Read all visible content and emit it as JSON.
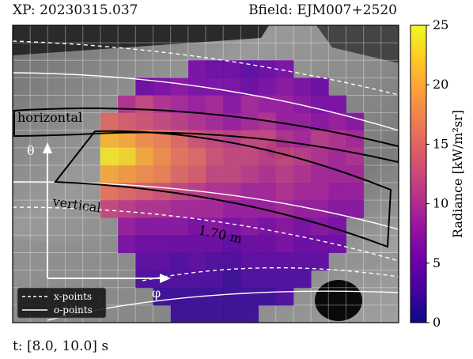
{
  "header": {
    "xp": "XP: 20230315.037",
    "bfield": "Bfield: EJM007+2520"
  },
  "footer": {
    "time_window": "t: [8.0, 10.0] s"
  },
  "annotations": {
    "horizontal": "horizontal",
    "vertical": "vertical",
    "distance": "1.70 m",
    "theta": "θ",
    "phi": "φ"
  },
  "legend": {
    "items": [
      {
        "label": "x-points",
        "style": "dashed",
        "color": "#ffffff"
      },
      {
        "label": "o-points",
        "style": "solid",
        "color": "#ffffff"
      }
    ]
  },
  "colorbar": {
    "label": "Radiance [kW/m²sr]",
    "min": 0,
    "max": 25,
    "ticks": [
      0,
      5,
      10,
      15,
      20,
      25
    ],
    "colormap": [
      "#0d0887",
      "#46039f",
      "#7201a8",
      "#9c179e",
      "#bd3786",
      "#d8576b",
      "#ed7953",
      "#fb9f3a",
      "#fdca26",
      "#f0f921"
    ]
  },
  "chart_data": {
    "type": "heatmap",
    "title": "",
    "value_label": "Radiance [kW/m²sr]",
    "vmin": 0,
    "vmax": 25,
    "note_grid": "rows top-to-bottom, cols left-to-right over the camera view; null = no data",
    "grid": [
      [
        null,
        null,
        null,
        null,
        null,
        null,
        null,
        null,
        null,
        null,
        null,
        null,
        null,
        null,
        null,
        null,
        null,
        null,
        null,
        null,
        null,
        null
      ],
      [
        null,
        null,
        null,
        null,
        null,
        null,
        null,
        null,
        null,
        null,
        null,
        null,
        null,
        null,
        null,
        null,
        null,
        null,
        null,
        null,
        null,
        null
      ],
      [
        null,
        null,
        null,
        null,
        null,
        null,
        null,
        null,
        null,
        null,
        6,
        5,
        5,
        4,
        5,
        6,
        null,
        null,
        null,
        null,
        null,
        null
      ],
      [
        null,
        null,
        null,
        null,
        null,
        null,
        null,
        5,
        6,
        7,
        6,
        6,
        6,
        5,
        6,
        7,
        6,
        5,
        null,
        null,
        null,
        null
      ],
      [
        null,
        null,
        null,
        null,
        null,
        null,
        10,
        12,
        10,
        9,
        8,
        9,
        7,
        9,
        8,
        8,
        7,
        6,
        6,
        null,
        null,
        null
      ],
      [
        null,
        null,
        null,
        null,
        null,
        15,
        14,
        13,
        12,
        11,
        10,
        9,
        8,
        9,
        10,
        8,
        8,
        7,
        8,
        7,
        null,
        null
      ],
      [
        null,
        null,
        null,
        null,
        null,
        21,
        20,
        18,
        17,
        15,
        13,
        12,
        11,
        12,
        12,
        10,
        9,
        11,
        10,
        9,
        null,
        null
      ],
      [
        null,
        null,
        null,
        null,
        null,
        24,
        23,
        20,
        18,
        16,
        15,
        13,
        12,
        12,
        11,
        12,
        11,
        10,
        9,
        10,
        null,
        null
      ],
      [
        null,
        null,
        null,
        null,
        null,
        20,
        19,
        18,
        17,
        15,
        14,
        12,
        12,
        11,
        10,
        11,
        10,
        9,
        9,
        9,
        null,
        null
      ],
      [
        null,
        null,
        null,
        null,
        null,
        16,
        15,
        14,
        13,
        12,
        11,
        10,
        10,
        9,
        9,
        10,
        9,
        9,
        8,
        8,
        null,
        null
      ],
      [
        null,
        null,
        null,
        null,
        null,
        12,
        11,
        10,
        10,
        9,
        9,
        9,
        8,
        8,
        8,
        9,
        8,
        8,
        7,
        7,
        null,
        null
      ],
      [
        null,
        null,
        null,
        null,
        null,
        null,
        8,
        7,
        7,
        7,
        6,
        7,
        6,
        7,
        6,
        7,
        6,
        7,
        6,
        null,
        null,
        null
      ],
      [
        null,
        null,
        null,
        null,
        null,
        null,
        6,
        5,
        5,
        5,
        5,
        5,
        4,
        5,
        5,
        6,
        5,
        5,
        5,
        null,
        null,
        null
      ],
      [
        null,
        null,
        null,
        null,
        null,
        null,
        null,
        4,
        4,
        3,
        4,
        3,
        3,
        4,
        4,
        4,
        4,
        4,
        null,
        null,
        null,
        null
      ],
      [
        null,
        null,
        null,
        null,
        null,
        null,
        null,
        3,
        3,
        3,
        3,
        3,
        2,
        3,
        3,
        3,
        3,
        null,
        null,
        null,
        null,
        null
      ],
      [
        null,
        null,
        null,
        null,
        null,
        null,
        null,
        null,
        2,
        2,
        2,
        2,
        2,
        2,
        2,
        3,
        null,
        null,
        null,
        null,
        null,
        null
      ],
      [
        null,
        null,
        null,
        null,
        null,
        null,
        null,
        null,
        null,
        2,
        2,
        2,
        2,
        2,
        null,
        null,
        null,
        null,
        null,
        null,
        null,
        null
      ]
    ]
  }
}
